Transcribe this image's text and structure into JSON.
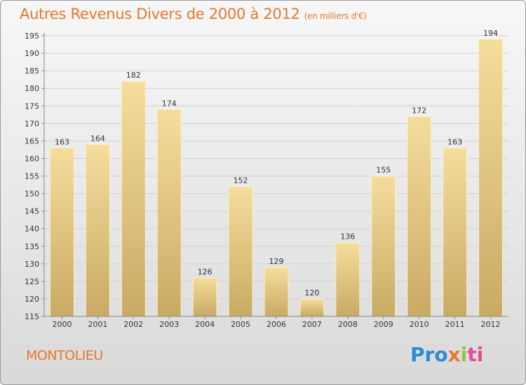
{
  "header": {
    "title": "Autres Revenus Divers de 2000 à 2012",
    "unit": "(en milliers d'€)"
  },
  "footer": {
    "town": "MONTOLIEU",
    "logo_parts": [
      "Pro",
      "x",
      "i",
      "ti"
    ]
  },
  "colors": {
    "title": "#e8762b",
    "bar_light": "#f5dc9a",
    "bar_dark": "#c9ac66",
    "grid": "#cfcfcf",
    "axis": "#888888"
  },
  "chart_data": {
    "type": "bar",
    "title": "Autres Revenus Divers de 2000 à 2012",
    "xlabel": "",
    "ylabel": "",
    "categories": [
      "2000",
      "2001",
      "2002",
      "2003",
      "2004",
      "2005",
      "2006",
      "2007",
      "2008",
      "2009",
      "2010",
      "2011",
      "2012"
    ],
    "values": [
      163,
      164,
      182,
      174,
      126,
      152,
      129,
      120,
      136,
      155,
      172,
      163,
      194
    ],
    "ylim": [
      115,
      195
    ],
    "yticks": [
      115,
      120,
      125,
      130,
      135,
      140,
      145,
      150,
      155,
      160,
      165,
      170,
      175,
      180,
      185,
      190,
      195
    ],
    "grid": true,
    "data_labels": true
  }
}
